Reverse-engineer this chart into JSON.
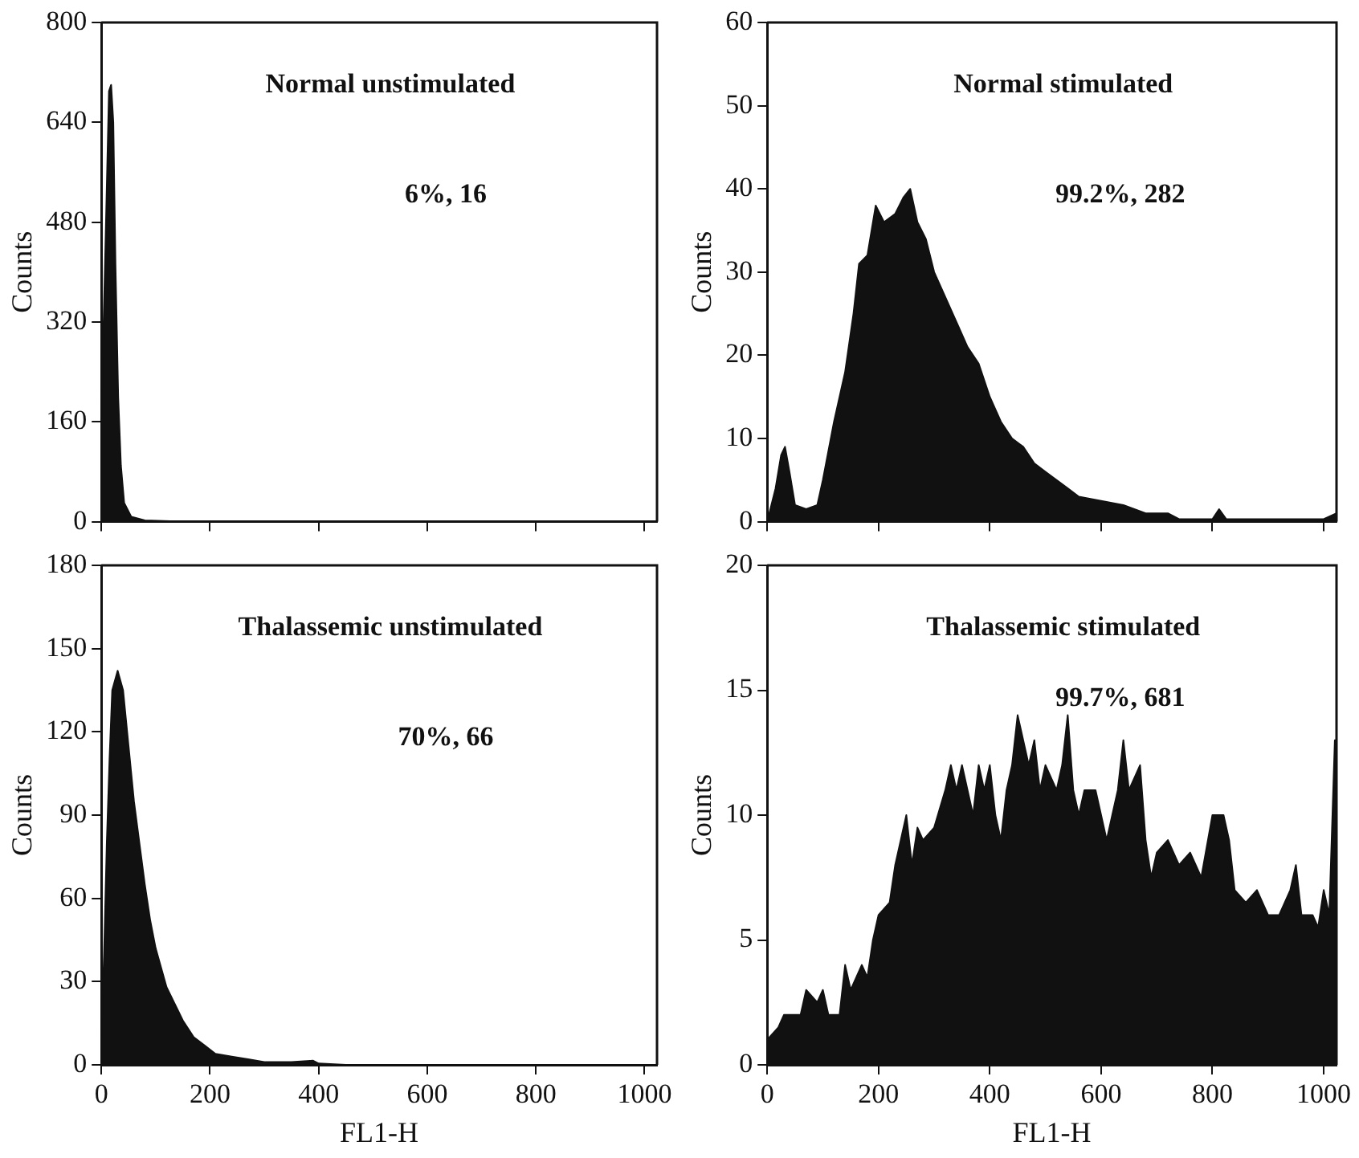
{
  "chart_data": [
    {
      "type": "area",
      "title": "Normal unstimulated",
      "ylabel": "Counts",
      "annotations": [
        "6%, 16"
      ],
      "tick_labels": "y",
      "xlim": [
        0,
        1023
      ],
      "xticks": [
        0,
        200,
        400,
        600,
        800,
        1000
      ],
      "ylim": [
        0,
        800
      ],
      "yticks": [
        0,
        160,
        320,
        480,
        640,
        800
      ],
      "grid": false,
      "legend": false,
      "series": [
        {
          "color": "#111111",
          "x": [
            0,
            8,
            14,
            18,
            22,
            26,
            31,
            36,
            42,
            55,
            80,
            150,
            1023
          ],
          "values": [
            170,
            460,
            690,
            700,
            640,
            410,
            200,
            90,
            30,
            8,
            2,
            0,
            0
          ]
        }
      ]
    },
    {
      "type": "area",
      "title": "Normal stimulated",
      "ylabel": "Counts",
      "annotations": [
        "99.2%, 282"
      ],
      "tick_labels": "y",
      "xlim": [
        0,
        1023
      ],
      "xticks": [
        0,
        200,
        400,
        600,
        800,
        1000
      ],
      "ylim": [
        0,
        60
      ],
      "yticks": [
        0,
        10,
        20,
        30,
        40,
        50,
        60
      ],
      "grid": false,
      "legend": false,
      "series": [
        {
          "color": "#111111",
          "x": [
            0,
            15,
            25,
            32,
            40,
            50,
            70,
            90,
            100,
            120,
            140,
            155,
            165,
            180,
            195,
            210,
            230,
            245,
            257,
            270,
            285,
            300,
            320,
            340,
            360,
            380,
            400,
            420,
            440,
            460,
            480,
            500,
            520,
            540,
            560,
            600,
            640,
            680,
            720,
            740,
            800,
            812,
            825,
            1000,
            1023
          ],
          "values": [
            0,
            4,
            8,
            9,
            6,
            2,
            1.5,
            2,
            5,
            12,
            18,
            25,
            31,
            32,
            38,
            36,
            37,
            39,
            40,
            36,
            34,
            30,
            27,
            24,
            21,
            19,
            15,
            12,
            10,
            9,
            7,
            6,
            5,
            4,
            3,
            2.5,
            2,
            1,
            1,
            0.3,
            0.3,
            1.5,
            0.3,
            0.3,
            1
          ]
        }
      ]
    },
    {
      "type": "area",
      "title": "Thalassemic unstimulated",
      "xlabel": "FL1-H",
      "ylabel": "Counts",
      "annotations": [
        "70%, 66"
      ],
      "xlim": [
        0,
        1023
      ],
      "xticks": [
        0,
        200,
        400,
        600,
        800,
        1000
      ],
      "ylim": [
        0,
        180
      ],
      "yticks": [
        0,
        30,
        60,
        90,
        120,
        150,
        180
      ],
      "grid": false,
      "legend": false,
      "series": [
        {
          "color": "#111111",
          "x": [
            0,
            5,
            10,
            15,
            20,
            30,
            40,
            50,
            60,
            70,
            80,
            90,
            100,
            110,
            120,
            135,
            150,
            170,
            190,
            210,
            240,
            270,
            300,
            350,
            390,
            400,
            450,
            1023
          ],
          "values": [
            10,
            40,
            80,
            110,
            135,
            142,
            135,
            115,
            95,
            80,
            65,
            52,
            42,
            35,
            28,
            22,
            16,
            10,
            7,
            4,
            3,
            2,
            1,
            1,
            1.5,
            0.5,
            0,
            0
          ]
        }
      ]
    },
    {
      "type": "area",
      "title": "Thalassemic stimulated",
      "xlabel": "FL1-H",
      "ylabel": "Counts",
      "annotations": [
        "99.7%, 681"
      ],
      "xlim": [
        0,
        1023
      ],
      "xticks": [
        0,
        200,
        400,
        600,
        800,
        1000
      ],
      "ylim": [
        0,
        20
      ],
      "yticks": [
        0,
        5,
        10,
        15,
        20
      ],
      "grid": false,
      "legend": false,
      "series": [
        {
          "color": "#111111",
          "x": [
            0,
            20,
            30,
            60,
            70,
            90,
            100,
            110,
            130,
            140,
            150,
            170,
            180,
            190,
            200,
            220,
            230,
            240,
            250,
            260,
            270,
            280,
            300,
            320,
            330,
            340,
            350,
            360,
            370,
            380,
            390,
            400,
            410,
            420,
            430,
            440,
            450,
            460,
            470,
            480,
            490,
            500,
            520,
            530,
            540,
            550,
            560,
            570,
            590,
            600,
            610,
            620,
            630,
            640,
            650,
            670,
            680,
            690,
            700,
            720,
            740,
            760,
            780,
            800,
            820,
            830,
            840,
            860,
            880,
            900,
            920,
            940,
            950,
            960,
            980,
            990,
            1000,
            1010,
            1020,
            1023
          ],
          "values": [
            1,
            1.5,
            2,
            2,
            3,
            2.5,
            3,
            2,
            2,
            4,
            3,
            4,
            3.5,
            5,
            6,
            6.5,
            8,
            9,
            10,
            8,
            9.5,
            9,
            9.5,
            11,
            12,
            11,
            12,
            11,
            10,
            12,
            11,
            12,
            10,
            9,
            11,
            12,
            14,
            13,
            12,
            13,
            11,
            12,
            11,
            12,
            14,
            11,
            10,
            11,
            11,
            10,
            9,
            10,
            11,
            13,
            11,
            12,
            9,
            7.5,
            8.5,
            9,
            8,
            8.5,
            7.5,
            10,
            10,
            9,
            7,
            6.5,
            7,
            6,
            6,
            7,
            8,
            6,
            6,
            5.5,
            7,
            6,
            13,
            13
          ]
        }
      ]
    }
  ]
}
